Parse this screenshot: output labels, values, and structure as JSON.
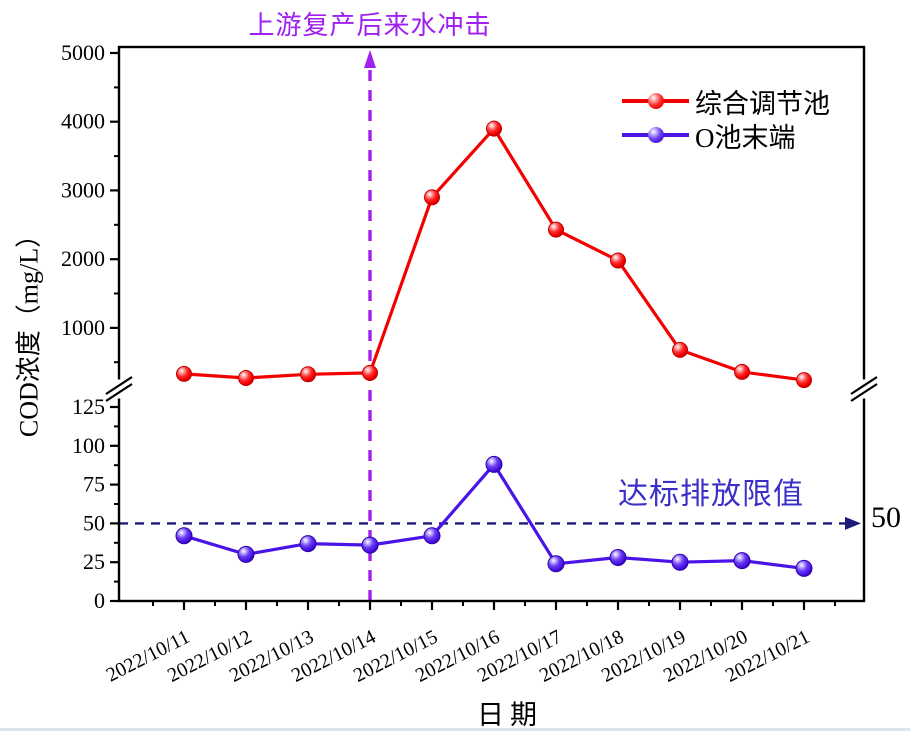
{
  "window": {
    "background": "#ffffff",
    "bottom_strip_color": "#dce6f2"
  },
  "chart_data": {
    "type": "line",
    "xlabel": "日期",
    "ylabel": "COD浓度（mg/L）",
    "categories": [
      "2022/10/11",
      "2022/10/12",
      "2022/10/13",
      "2022/10/14",
      "2022/10/15",
      "2022/10/16",
      "2022/10/17",
      "2022/10/18",
      "2022/10/19",
      "2022/10/20",
      "2022/10/21"
    ],
    "series": [
      {
        "name": "综合调节池",
        "color": "#f40000",
        "marker_edge": "#c00000",
        "values": [
          330,
          270,
          325,
          345,
          2900,
          3900,
          2430,
          1980,
          680,
          360,
          240
        ]
      },
      {
        "name": "O池末端",
        "color": "#4a14e6",
        "marker_edge": "#2e00ac",
        "values": [
          42,
          30,
          37,
          36,
          42,
          88,
          24,
          28,
          25,
          26,
          21
        ]
      }
    ],
    "axis_break": {
      "lower_range": [
        0,
        125
      ],
      "upper_range": [
        125,
        5000
      ],
      "lower_ticks": [
        0,
        25,
        50,
        75,
        100,
        125
      ],
      "upper_ticks": [
        1000,
        2000,
        3000,
        4000,
        5000
      ],
      "lower_minor_step": 12.5,
      "upper_minor_step": 500
    },
    "limit_line": {
      "value": 50,
      "label": "达标排放限值",
      "value_label": "50",
      "line_color": "#1c1c78",
      "text_color": "#3a30c8"
    },
    "event_line": {
      "category": "2022/10/14",
      "label": "上游复产后来水冲击",
      "color": "#a020f0"
    },
    "legend_position": "top-right",
    "grid": false,
    "axis_color": "#000000"
  }
}
